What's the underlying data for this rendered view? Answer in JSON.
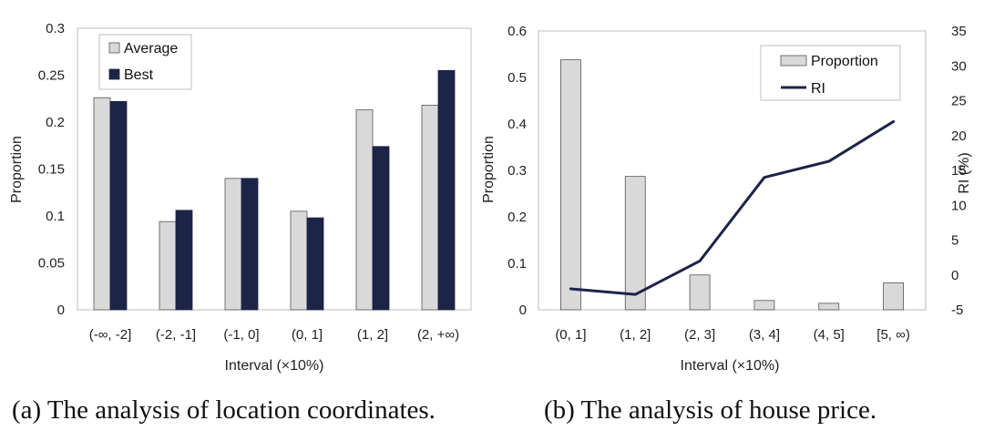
{
  "chart_data": [
    {
      "type": "bar",
      "caption": "(a)  The analysis of location coordinates.",
      "xlabel": "Interval (×10%)",
      "ylabel": "Proportion",
      "categories": [
        "(-∞, -2]",
        "(-2, -1]",
        "(-1, 0]",
        "(0, 1]",
        "(1, 2]",
        "(2, +∞)"
      ],
      "ylim": [
        0,
        0.3
      ],
      "yticks": [
        "0",
        "0.05",
        "0.1",
        "0.15",
        "0.2",
        "0.25",
        "0.3"
      ],
      "legend_position": "top-left",
      "grid": false,
      "series": [
        {
          "name": "Average",
          "color": "#d9d9d9",
          "values": [
            0.226,
            0.094,
            0.14,
            0.105,
            0.213,
            0.218
          ]
        },
        {
          "name": "Best",
          "color": "#1c2447",
          "values": [
            0.222,
            0.106,
            0.14,
            0.098,
            0.174,
            0.255
          ]
        }
      ]
    },
    {
      "type": "bar+line",
      "caption": "(b)  The analysis of house price.",
      "xlabel": "Interval (×10%)",
      "ylabel": "Proportion",
      "y2label": "RI (%)",
      "categories": [
        "(0, 1]",
        "(1, 2]",
        "(2, 3]",
        "(3, 4]",
        "(4, 5]",
        "[5, ∞)"
      ],
      "ylim": [
        0,
        0.6
      ],
      "yticks": [
        "0",
        "0.1",
        "0.2",
        "0.3",
        "0.4",
        "0.5",
        "0.6"
      ],
      "y2lim": [
        -5,
        35
      ],
      "y2ticks": [
        "-5",
        "0",
        "5",
        "10",
        "15",
        "20",
        "25",
        "30",
        "35"
      ],
      "legend_position": "top-right",
      "grid": false,
      "series": [
        {
          "name": "Proportion",
          "kind": "bar",
          "color": "#d9d9d9",
          "values": [
            0.538,
            0.287,
            0.075,
            0.02,
            0.014,
            0.058
          ]
        },
        {
          "name": "RI",
          "kind": "line",
          "axis": "right",
          "color": "#1c2447",
          "values": [
            -2.0,
            -2.8,
            2.0,
            14.0,
            16.3,
            22.0
          ]
        }
      ]
    }
  ]
}
